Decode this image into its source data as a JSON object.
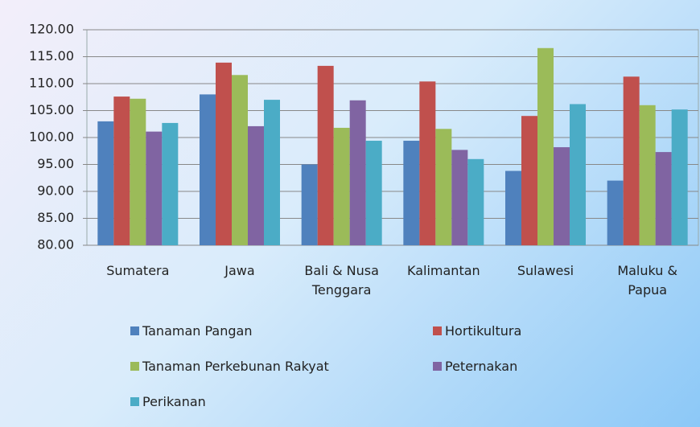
{
  "chart_data": {
    "type": "bar",
    "categories": [
      "Sumatera",
      "Jawa",
      "Bali & Nusa Tenggara",
      "Kalimantan",
      "Sulawesi",
      "Maluku & Papua"
    ],
    "series": [
      {
        "name": "Tanaman Pangan",
        "color": "#4f81bd",
        "values": [
          103.0,
          108.0,
          95.0,
          99.4,
          93.8,
          92.0
        ]
      },
      {
        "name": "Hortikultura",
        "color": "#c0504d",
        "values": [
          107.6,
          113.9,
          113.3,
          110.4,
          104.0,
          111.3
        ]
      },
      {
        "name": "Tanaman Perkebunan Rakyat",
        "color": "#9bbb59",
        "values": [
          107.2,
          111.6,
          101.8,
          101.6,
          116.6,
          106.0
        ]
      },
      {
        "name": "Peternakan",
        "color": "#8064a2",
        "values": [
          101.1,
          102.1,
          106.9,
          97.7,
          98.2,
          97.3
        ]
      },
      {
        "name": "Perikanan",
        "color": "#4bacc6",
        "values": [
          102.7,
          107.0,
          99.4,
          96.0,
          106.2,
          105.2
        ]
      }
    ],
    "ylim": [
      80,
      120
    ],
    "yticks": [
      {
        "value": 80,
        "label": "80.00"
      },
      {
        "value": 85,
        "label": "85.00"
      },
      {
        "value": 90,
        "label": "90.00"
      },
      {
        "value": 95,
        "label": "95.00"
      },
      {
        "value": 100,
        "label": "100.00"
      },
      {
        "value": 105,
        "label": "105.00"
      },
      {
        "value": 110,
        "label": "110.00"
      },
      {
        "value": 115,
        "label": "115.00"
      },
      {
        "value": 120,
        "label": "120.00"
      }
    ],
    "grid": true
  }
}
